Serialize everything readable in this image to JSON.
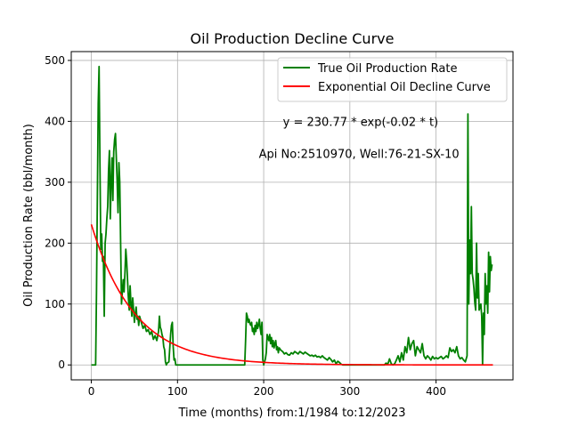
{
  "chart_data": {
    "type": "line",
    "title": "Oil Production Decline Curve",
    "xlabel": "Time (months) from:1/1984 to:12/2023",
    "ylabel": "Oil Production Rate (bbl/month)",
    "xlim": [
      -23.3,
      489.3
    ],
    "ylim": [
      -24.5,
      514.5
    ],
    "xticks": [
      0,
      100,
      200,
      300,
      400
    ],
    "yticks": [
      0,
      100,
      200,
      300,
      400,
      500
    ],
    "grid": true,
    "legend_position": "top-right",
    "annotations": [
      {
        "text": "y = 230.77 * exp(-0.02 * t)",
        "x": 305,
        "y": 400
      },
      {
        "text": "Api No:2510970, Well:76-21-SX-10",
        "x": 305,
        "y": 347
      }
    ],
    "series": [
      {
        "name": "True Oil Production Rate",
        "color": "#008000",
        "points": [
          [
            0,
            0
          ],
          [
            5,
            0
          ],
          [
            6,
            120
          ],
          [
            8,
            430
          ],
          [
            9,
            490
          ],
          [
            10,
            330
          ],
          [
            11,
            190
          ],
          [
            12,
            215
          ],
          [
            13,
            170
          ],
          [
            14,
            178
          ],
          [
            15,
            80
          ],
          [
            16,
            200
          ],
          [
            17,
            215
          ],
          [
            18,
            240
          ],
          [
            19,
            260
          ],
          [
            20,
            320
          ],
          [
            21,
            352
          ],
          [
            22,
            240
          ],
          [
            23,
            300
          ],
          [
            24,
            340
          ],
          [
            25,
            270
          ],
          [
            26,
            350
          ],
          [
            27,
            370
          ],
          [
            28,
            380
          ],
          [
            29,
            340
          ],
          [
            30,
            300
          ],
          [
            31,
            250
          ],
          [
            32,
            332
          ],
          [
            33,
            300
          ],
          [
            34,
            200
          ],
          [
            35,
            100
          ],
          [
            36,
            120
          ],
          [
            37,
            140
          ],
          [
            38,
            120
          ],
          [
            39,
            150
          ],
          [
            40,
            190
          ],
          [
            41,
            170
          ],
          [
            42,
            140
          ],
          [
            43,
            110
          ],
          [
            44,
            90
          ],
          [
            45,
            130
          ],
          [
            46,
            100
          ],
          [
            47,
            80
          ],
          [
            48,
            110
          ],
          [
            49,
            90
          ],
          [
            50,
            70
          ],
          [
            51,
            85
          ],
          [
            52,
            95
          ],
          [
            53,
            75
          ],
          [
            54,
            80
          ],
          [
            55,
            65
          ],
          [
            56,
            80
          ],
          [
            58,
            70
          ],
          [
            60,
            60
          ],
          [
            62,
            65
          ],
          [
            64,
            55
          ],
          [
            66,
            58
          ],
          [
            68,
            50
          ],
          [
            70,
            55
          ],
          [
            72,
            42
          ],
          [
            74,
            48
          ],
          [
            76,
            40
          ],
          [
            78,
            55
          ],
          [
            79,
            80
          ],
          [
            80,
            62
          ],
          [
            81,
            58
          ],
          [
            82,
            50
          ],
          [
            83,
            45
          ],
          [
            84,
            30
          ],
          [
            85,
            25
          ],
          [
            86,
            5
          ],
          [
            87,
            0
          ],
          [
            88,
            3
          ],
          [
            90,
            5
          ],
          [
            92,
            50
          ],
          [
            93,
            65
          ],
          [
            94,
            70
          ],
          [
            95,
            30
          ],
          [
            96,
            8
          ],
          [
            97,
            10
          ],
          [
            98,
            0
          ],
          [
            178,
            0
          ],
          [
            179,
            40
          ],
          [
            180,
            85
          ],
          [
            181,
            80
          ],
          [
            182,
            70
          ],
          [
            183,
            75
          ],
          [
            184,
            68
          ],
          [
            185,
            65
          ],
          [
            186,
            70
          ],
          [
            187,
            55
          ],
          [
            188,
            60
          ],
          [
            189,
            50
          ],
          [
            190,
            65
          ],
          [
            191,
            55
          ],
          [
            192,
            70
          ],
          [
            193,
            60
          ],
          [
            194,
            65
          ],
          [
            195,
            75
          ],
          [
            196,
            60
          ],
          [
            197,
            50
          ],
          [
            198,
            70
          ],
          [
            199,
            8
          ],
          [
            200,
            0
          ],
          [
            202,
            10
          ],
          [
            203,
            20
          ],
          [
            204,
            50
          ],
          [
            205,
            45
          ],
          [
            206,
            40
          ],
          [
            207,
            50
          ],
          [
            208,
            35
          ],
          [
            209,
            45
          ],
          [
            210,
            30
          ],
          [
            211,
            40
          ],
          [
            212,
            28
          ],
          [
            213,
            35
          ],
          [
            214,
            40
          ],
          [
            215,
            25
          ],
          [
            216,
            30
          ],
          [
            217,
            20
          ],
          [
            218,
            28
          ],
          [
            220,
            24
          ],
          [
            222,
            22
          ],
          [
            224,
            18
          ],
          [
            226,
            20
          ],
          [
            228,
            17
          ],
          [
            230,
            16
          ],
          [
            232,
            20
          ],
          [
            234,
            18
          ],
          [
            236,
            22
          ],
          [
            238,
            20
          ],
          [
            240,
            18
          ],
          [
            242,
            22
          ],
          [
            244,
            20
          ],
          [
            246,
            18
          ],
          [
            248,
            21
          ],
          [
            250,
            19
          ],
          [
            252,
            17
          ],
          [
            254,
            15
          ],
          [
            256,
            16
          ],
          [
            258,
            14
          ],
          [
            260,
            16
          ],
          [
            262,
            13
          ],
          [
            264,
            14
          ],
          [
            266,
            12
          ],
          [
            268,
            15
          ],
          [
            270,
            12
          ],
          [
            272,
            10
          ],
          [
            274,
            8
          ],
          [
            276,
            12
          ],
          [
            278,
            9
          ],
          [
            280,
            5
          ],
          [
            282,
            8
          ],
          [
            284,
            2
          ],
          [
            286,
            6
          ],
          [
            288,
            4
          ],
          [
            290,
            1
          ],
          [
            292,
            0
          ],
          [
            300,
            0
          ],
          [
            330,
            0
          ],
          [
            340,
            0
          ],
          [
            342,
            3
          ],
          [
            344,
            1
          ],
          [
            346,
            10
          ],
          [
            348,
            2
          ],
          [
            350,
            0
          ],
          [
            352,
            2
          ],
          [
            354,
            8
          ],
          [
            356,
            15
          ],
          [
            358,
            5
          ],
          [
            360,
            20
          ],
          [
            362,
            8
          ],
          [
            364,
            30
          ],
          [
            366,
            20
          ],
          [
            368,
            45
          ],
          [
            370,
            25
          ],
          [
            372,
            35
          ],
          [
            374,
            40
          ],
          [
            376,
            15
          ],
          [
            378,
            30
          ],
          [
            380,
            25
          ],
          [
            382,
            20
          ],
          [
            384,
            35
          ],
          [
            386,
            15
          ],
          [
            388,
            10
          ],
          [
            390,
            15
          ],
          [
            392,
            12
          ],
          [
            394,
            8
          ],
          [
            396,
            14
          ],
          [
            398,
            10
          ],
          [
            400,
            12
          ],
          [
            402,
            10
          ],
          [
            404,
            12
          ],
          [
            406,
            14
          ],
          [
            408,
            10
          ],
          [
            410,
            12
          ],
          [
            412,
            15
          ],
          [
            414,
            12
          ],
          [
            416,
            28
          ],
          [
            418,
            22
          ],
          [
            420,
            25
          ],
          [
            422,
            20
          ],
          [
            424,
            30
          ],
          [
            426,
            15
          ],
          [
            428,
            10
          ],
          [
            430,
            12
          ],
          [
            432,
            8
          ],
          [
            434,
            5
          ],
          [
            436,
            15
          ],
          [
            437,
            412
          ],
          [
            438,
            100
          ],
          [
            439,
            205
          ],
          [
            440,
            150
          ],
          [
            441,
            260
          ],
          [
            442,
            150
          ],
          [
            443,
            140
          ],
          [
            444,
            125
          ],
          [
            445,
            102
          ],
          [
            446,
            90
          ],
          [
            447,
            200
          ],
          [
            448,
            110
          ],
          [
            449,
            150
          ],
          [
            450,
            90
          ],
          [
            451,
            95
          ],
          [
            452,
            100
          ],
          [
            453,
            80
          ],
          [
            454,
            0
          ],
          [
            455,
            85
          ],
          [
            456,
            50
          ],
          [
            457,
            150
          ],
          [
            458,
            100
          ],
          [
            459,
            130
          ],
          [
            460,
            85
          ],
          [
            461,
            185
          ],
          [
            462,
            120
          ],
          [
            463,
            178
          ],
          [
            464,
            155
          ],
          [
            465,
            165
          ]
        ]
      },
      {
        "name": "Exponential Oil Decline Curve",
        "color": "#ff0000",
        "equation": {
          "a": 230.77,
          "b": -0.02
        },
        "x_range": [
          0,
          466
        ]
      }
    ]
  }
}
